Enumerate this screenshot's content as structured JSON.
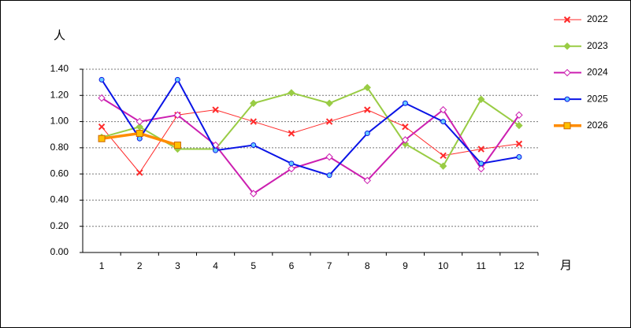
{
  "chart_data": {
    "type": "line",
    "y_label": "人",
    "x_label": "月",
    "categories": [
      "1",
      "2",
      "3",
      "4",
      "5",
      "6",
      "7",
      "8",
      "9",
      "10",
      "11",
      "12"
    ],
    "ylim": [
      0,
      1.4
    ],
    "yticks": [
      {
        "value": 0,
        "label": "0.00"
      },
      {
        "value": 0.2,
        "label": "0.20"
      },
      {
        "value": 0.4,
        "label": "0.40"
      },
      {
        "value": 0.6,
        "label": "0.60"
      },
      {
        "value": 0.8,
        "label": "0.80"
      },
      {
        "value": 1.0,
        "label": "1.00"
      },
      {
        "value": 1.2,
        "label": "1.20"
      },
      {
        "value": 1.4,
        "label": "1.40"
      }
    ],
    "grid": true,
    "legend": "right",
    "series": [
      {
        "name": "2022",
        "color": "#ff2a2a",
        "marker": "x",
        "values": [
          0.96,
          0.61,
          1.05,
          1.09,
          1.0,
          0.91,
          1.0,
          1.09,
          0.96,
          0.74,
          0.79,
          0.83
        ]
      },
      {
        "name": "2023",
        "color": "#99cc44",
        "marker": "diamond",
        "values": [
          0.88,
          0.96,
          0.79,
          0.79,
          1.14,
          1.22,
          1.14,
          1.26,
          0.83,
          0.66,
          1.17,
          0.97
        ]
      },
      {
        "name": "2024",
        "color": "#cc1fb0",
        "marker": "diamond-open",
        "values": [
          1.18,
          1.0,
          1.05,
          0.82,
          0.45,
          0.64,
          0.73,
          0.55,
          0.86,
          1.09,
          0.64,
          1.05
        ]
      },
      {
        "name": "2025",
        "color": "#0a14e6",
        "marker": "circle",
        "values": [
          1.32,
          0.87,
          1.32,
          0.78,
          0.82,
          0.68,
          0.59,
          0.91,
          1.14,
          1.0,
          0.68,
          0.73
        ]
      },
      {
        "name": "2026",
        "color": "#ff8c00",
        "marker": "square",
        "values": [
          0.87,
          0.91,
          0.82,
          null,
          null,
          null,
          null,
          null,
          null,
          null,
          null,
          null
        ]
      }
    ]
  }
}
